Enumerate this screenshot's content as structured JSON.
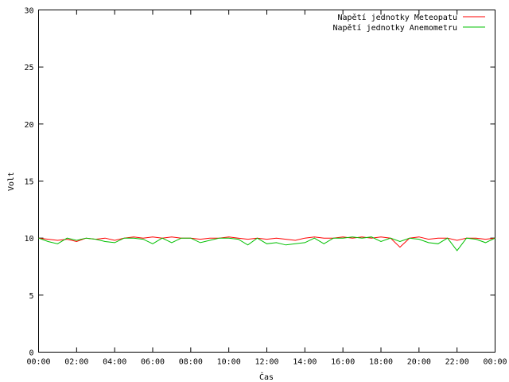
{
  "chart_data": {
    "type": "line",
    "ylabel": "Volt",
    "xlabel": "Čas",
    "ylim": [
      0,
      30
    ],
    "yticks": [
      0,
      5,
      10,
      15,
      20,
      25,
      30
    ],
    "xlim": [
      "00:00",
      "24:00"
    ],
    "xticks": [
      "00:00",
      "02:00",
      "04:00",
      "06:00",
      "08:00",
      "10:00",
      "12:00",
      "14:00",
      "16:00",
      "18:00",
      "20:00",
      "22:00",
      "00:00"
    ],
    "grid": false,
    "legend_position": "top-right",
    "series": [
      {
        "name": "Napětí jednotky Meteopatu",
        "color": "#ff0000",
        "x_hours": [
          0,
          0.5,
          1,
          1.5,
          2,
          2.5,
          3,
          3.5,
          4,
          4.5,
          5,
          5.5,
          6,
          6.5,
          7,
          7.5,
          8,
          8.5,
          9,
          9.5,
          10,
          10.5,
          11,
          11.5,
          12,
          12.5,
          13,
          13.5,
          14,
          14.5,
          15,
          15.5,
          16,
          16.5,
          17,
          17.5,
          18,
          18.5,
          19,
          19.5,
          20,
          20.5,
          21,
          21.5,
          22,
          22.5,
          23,
          23.5,
          24
        ],
        "values": [
          10.0,
          9.9,
          9.8,
          9.9,
          9.7,
          10.0,
          9.9,
          10.0,
          9.8,
          10.0,
          10.1,
          10.0,
          10.1,
          10.0,
          10.1,
          10.0,
          10.0,
          9.9,
          10.0,
          10.0,
          10.1,
          10.0,
          9.9,
          10.0,
          9.9,
          10.0,
          9.9,
          9.8,
          10.0,
          10.1,
          10.0,
          10.0,
          10.1,
          10.0,
          10.1,
          10.0,
          10.1,
          10.0,
          9.2,
          10.0,
          10.1,
          9.9,
          10.0,
          10.0,
          9.8,
          10.0,
          10.0,
          9.9,
          10.0
        ]
      },
      {
        "name": "Napětí jednotky Anemometru",
        "color": "#00c000",
        "x_hours": [
          0,
          0.5,
          1,
          1.5,
          2,
          2.5,
          3,
          3.5,
          4,
          4.5,
          5,
          5.5,
          6,
          6.5,
          7,
          7.5,
          8,
          8.5,
          9,
          9.5,
          10,
          10.5,
          11,
          11.5,
          12,
          12.5,
          13,
          13.5,
          14,
          14.5,
          15,
          15.5,
          16,
          16.5,
          17,
          17.5,
          18,
          18.5,
          19,
          19.5,
          20,
          20.5,
          21,
          21.5,
          22,
          22.5,
          23,
          23.5,
          24
        ],
        "values": [
          10.0,
          9.7,
          9.5,
          10.0,
          9.8,
          10.0,
          9.9,
          9.7,
          9.6,
          10.0,
          10.0,
          9.9,
          9.5,
          10.0,
          9.6,
          10.0,
          10.0,
          9.6,
          9.8,
          10.0,
          10.0,
          9.9,
          9.4,
          10.0,
          9.5,
          9.6,
          9.4,
          9.5,
          9.6,
          10.0,
          9.5,
          10.0,
          10.0,
          10.1,
          10.0,
          10.1,
          9.7,
          10.0,
          9.7,
          10.0,
          9.9,
          9.6,
          9.5,
          10.0,
          8.9,
          10.0,
          9.9,
          9.6,
          10.0
        ]
      }
    ]
  }
}
